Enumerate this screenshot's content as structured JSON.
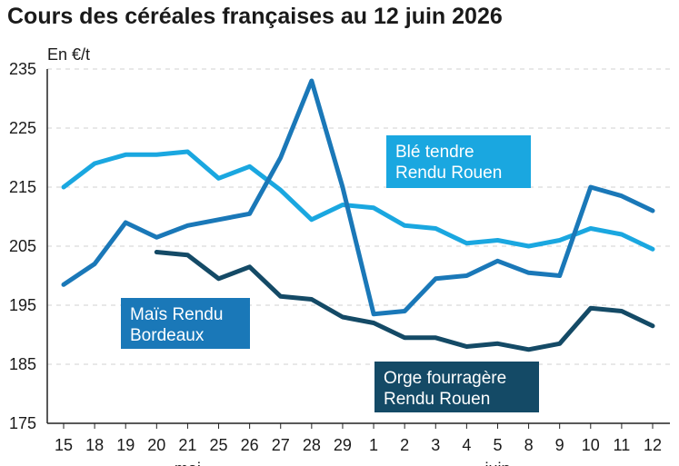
{
  "chart_data": {
    "type": "line",
    "title": "Cours des céréales françaises au 12 juin 2026",
    "ylabel": "En €/t",
    "ylim": [
      175,
      235
    ],
    "yticks": [
      175,
      185,
      195,
      205,
      215,
      225,
      235
    ],
    "categories": [
      "15",
      "18",
      "19",
      "20",
      "21",
      "25",
      "26",
      "27",
      "28",
      "29",
      "1",
      "2",
      "3",
      "4",
      "5",
      "8",
      "9",
      "10",
      "11",
      "12"
    ],
    "month_labels": [
      {
        "text": "mai",
        "at": "21"
      },
      {
        "text": "juin",
        "at": "5"
      }
    ],
    "grid": true,
    "series": [
      {
        "name": "Blé tendre Rendu Rouen",
        "color": "#1aa7e0",
        "label_lines": [
          "Blé tendre",
          "Rendu Rouen"
        ],
        "values": [
          215,
          219,
          220.5,
          220.5,
          221,
          216.5,
          218.5,
          214.5,
          209.5,
          212,
          211.5,
          208.5,
          208,
          205.5,
          206,
          205,
          206,
          208,
          207,
          204.5
        ]
      },
      {
        "name": "Maïs Rendu Bordeaux",
        "color": "#1a78b8",
        "label_lines": [
          "Maïs Rendu",
          "Bordeaux"
        ],
        "values": [
          198.5,
          202,
          209,
          206.5,
          208.5,
          209.5,
          210.5,
          220,
          233,
          215,
          193.5,
          194,
          199.5,
          200,
          202.5,
          200.5,
          200,
          215,
          213.5,
          211
        ]
      },
      {
        "name": "Orge fourragère Rendu Rouen",
        "color": "#144a66",
        "label_lines": [
          "Orge fourragère",
          "Rendu Rouen"
        ],
        "values": [
          null,
          null,
          null,
          204,
          203.5,
          199.5,
          201.5,
          196.5,
          196,
          193,
          192,
          189.5,
          189.5,
          188,
          188.5,
          187.5,
          188.5,
          194.5,
          194,
          191.5
        ]
      }
    ]
  }
}
